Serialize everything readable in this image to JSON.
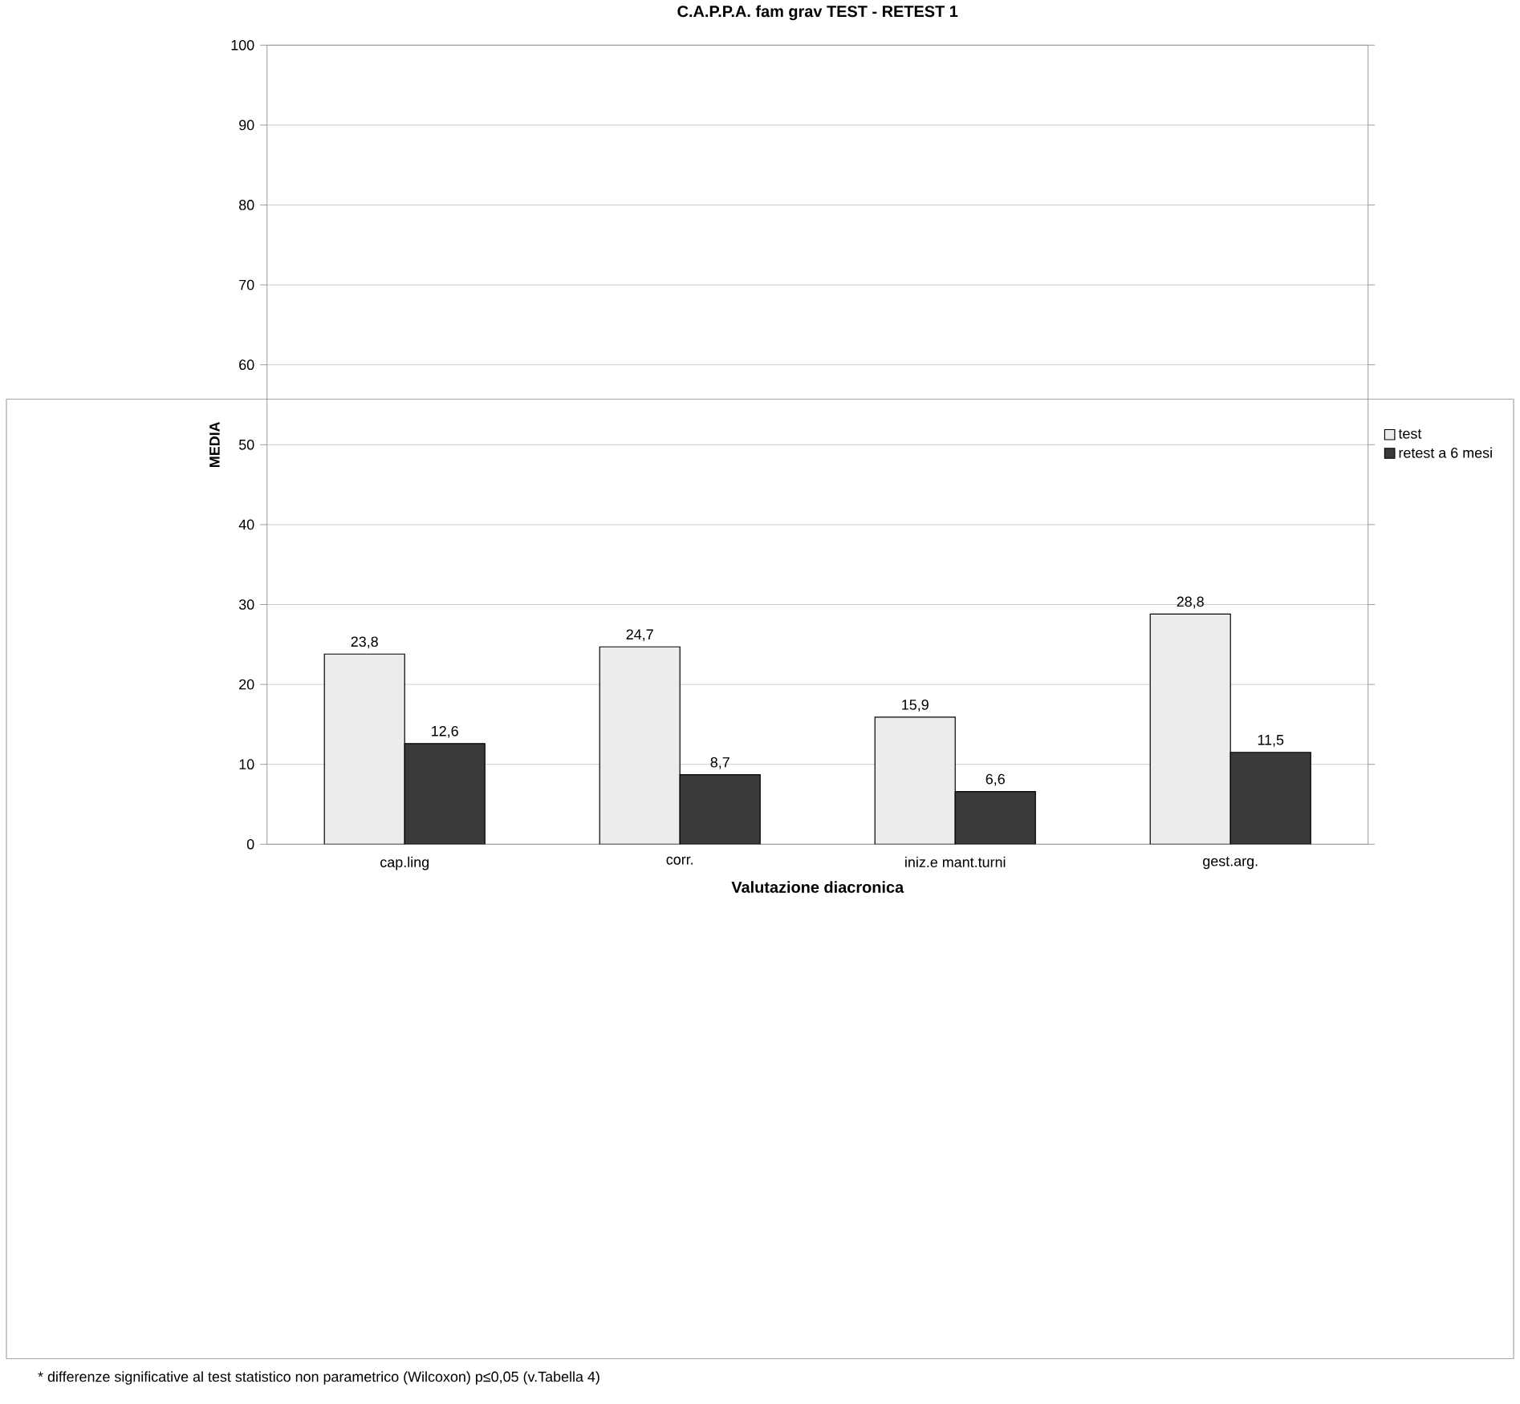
{
  "chart_data": {
    "type": "bar",
    "title": "C.A.P.P.A. fam grav TEST - RETEST 1",
    "xlabel": "Valutazione diacronica",
    "ylabel": "MEDIA",
    "categories": [
      "cap.ling",
      "corr.",
      "iniz.e mant.turni",
      "gest.arg."
    ],
    "series": [
      {
        "name": "test",
        "color": "#ececec",
        "values": [
          23.8,
          24.7,
          15.9,
          28.8
        ],
        "value_labels": [
          "23,8",
          "24,7",
          "15,9",
          "28,8"
        ]
      },
      {
        "name": "retest a 6 mesi",
        "color": "#3a3a3a",
        "values": [
          12.6,
          8.7,
          6.6,
          11.5
        ],
        "value_labels": [
          "12,6",
          "8,7",
          "6,6",
          "11,5"
        ]
      }
    ],
    "ylim": [
      0,
      100
    ],
    "yticks": [
      0,
      10,
      20,
      30,
      40,
      50,
      60,
      70,
      80,
      90,
      100
    ],
    "grid": "y",
    "legend": "right",
    "annotations": [
      "* differenze significative al test statistico non parametrico (Wilcoxon) p≤0,05 (v.Tabella 4)"
    ]
  }
}
